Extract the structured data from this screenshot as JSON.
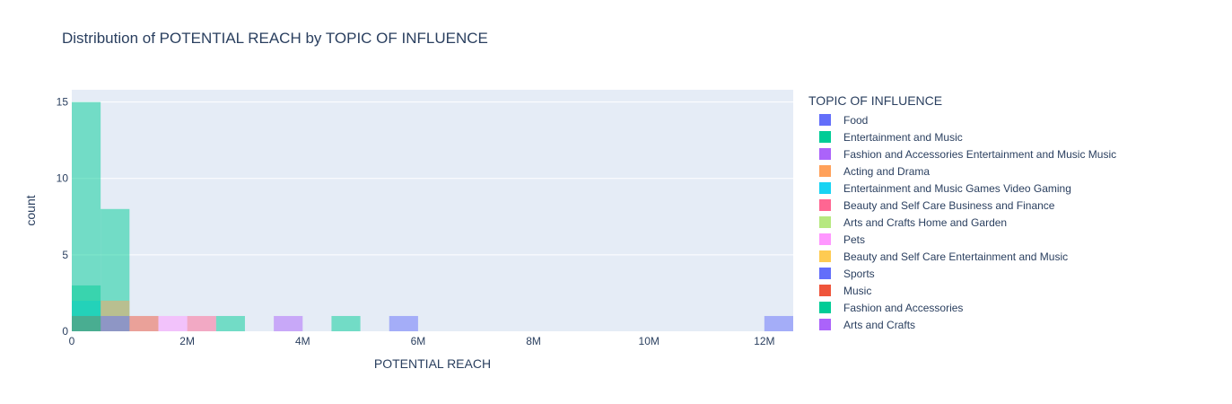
{
  "chart_data": {
    "type": "bar",
    "title": "Distribution of POTENTIAL REACH by TOPIC OF INFLUENCE",
    "xlabel": "POTENTIAL REACH",
    "ylabel": "count",
    "xlim": [
      0,
      12500000
    ],
    "ylim": [
      0,
      15.8
    ],
    "bin_size": 500000,
    "barmode": "overlay",
    "grid": true,
    "x_ticks": [
      {
        "value": 0,
        "label": "0"
      },
      {
        "value": 2000000,
        "label": "2M"
      },
      {
        "value": 4000000,
        "label": "4M"
      },
      {
        "value": 6000000,
        "label": "6M"
      },
      {
        "value": 8000000,
        "label": "8M"
      },
      {
        "value": 10000000,
        "label": "10M"
      },
      {
        "value": 12000000,
        "label": "12M"
      }
    ],
    "y_ticks": [
      {
        "value": 0,
        "label": "0"
      },
      {
        "value": 5,
        "label": "5"
      },
      {
        "value": 10,
        "label": "10"
      },
      {
        "value": 15,
        "label": "15"
      }
    ],
    "legend_title": "TOPIC OF INFLUENCE",
    "legend_position": "right",
    "series": [
      {
        "name": "Food",
        "color": "#636efa",
        "bins": [
          {
            "x0": 0,
            "x1": 500000,
            "count": 1
          }
        ]
      },
      {
        "name": "Entertainment and Music",
        "color": "#00cc96",
        "bins": [
          {
            "x0": 0,
            "x1": 500000,
            "count": 15
          },
          {
            "x0": 500000,
            "x1": 1000000,
            "count": 8
          },
          {
            "x0": 2500000,
            "x1": 3000000,
            "count": 1
          },
          {
            "x0": 4500000,
            "x1": 5000000,
            "count": 1
          }
        ]
      },
      {
        "name": "Fashion and Accessories Entertainment and Music Music",
        "color": "#ab63fa",
        "bins": [
          {
            "x0": 3500000,
            "x1": 4000000,
            "count": 1
          }
        ]
      },
      {
        "name": "Acting and Drama",
        "color": "#ffa15a",
        "bins": [
          {
            "x0": 500000,
            "x1": 1000000,
            "count": 2
          }
        ]
      },
      {
        "name": "Entertainment and Music Games Video Gaming",
        "color": "#19d3f3",
        "bins": [
          {
            "x0": 0,
            "x1": 500000,
            "count": 2
          }
        ]
      },
      {
        "name": "Beauty and Self Care Business and Finance",
        "color": "#ff6692",
        "bins": [
          {
            "x0": 2000000,
            "x1": 2500000,
            "count": 1
          }
        ]
      },
      {
        "name": "Arts and Crafts Home and Garden",
        "color": "#b6e880",
        "bins": []
      },
      {
        "name": "Pets",
        "color": "#ff97ff",
        "bins": [
          {
            "x0": 1500000,
            "x1": 2000000,
            "count": 1
          }
        ]
      },
      {
        "name": "Beauty and Self Care Entertainment and Music",
        "color": "#fecb52",
        "bins": []
      },
      {
        "name": "Sports",
        "color": "#636efa",
        "bins": [
          {
            "x0": 500000,
            "x1": 1000000,
            "count": 1
          },
          {
            "x0": 5500000,
            "x1": 6000000,
            "count": 1
          },
          {
            "x0": 12000000,
            "x1": 12500000,
            "count": 1
          }
        ]
      },
      {
        "name": "Music",
        "color": "#ef553b",
        "bins": [
          {
            "x0": 0,
            "x1": 500000,
            "count": 1
          },
          {
            "x0": 1000000,
            "x1": 1500000,
            "count": 1
          }
        ]
      },
      {
        "name": "Fashion and Accessories",
        "color": "#00cc96",
        "bins": [
          {
            "x0": 0,
            "x1": 500000,
            "count": 3
          }
        ]
      },
      {
        "name": "Arts and Crafts",
        "color": "#ab63fa",
        "bins": []
      }
    ]
  }
}
